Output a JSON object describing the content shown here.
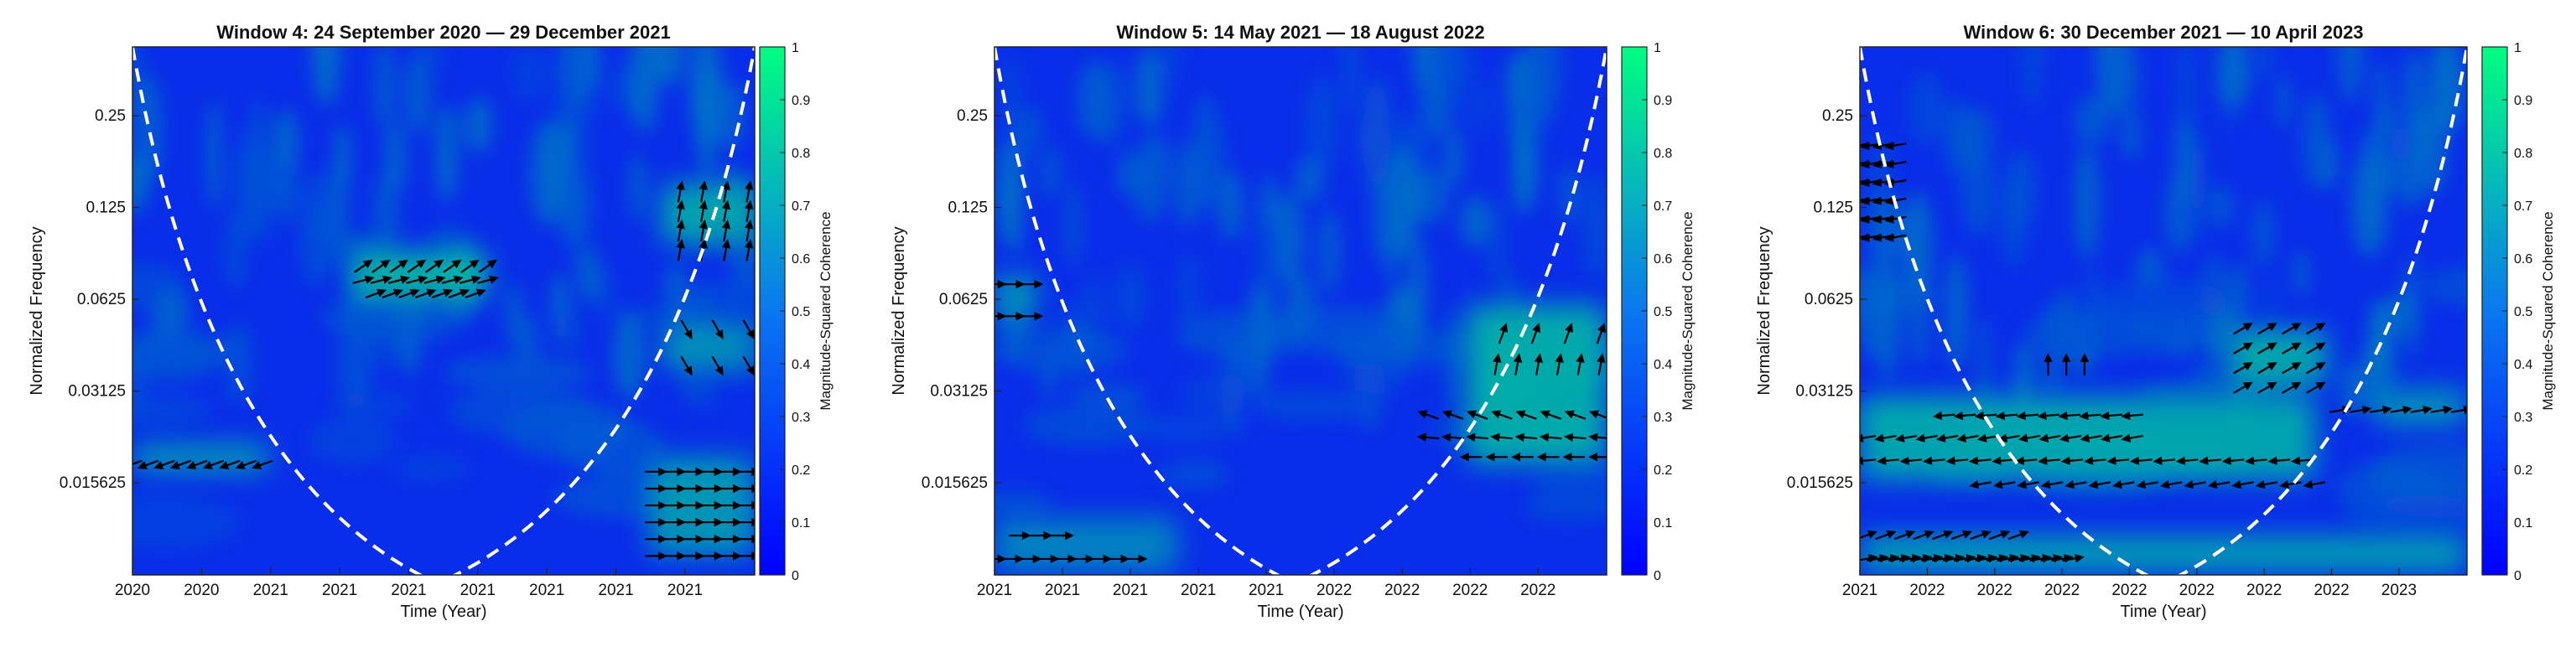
{
  "colors": {
    "low": "#0a17f5",
    "high": "#00ff80",
    "cone": "#ffffff",
    "arrow": "#000000"
  },
  "chart_data": [
    {
      "type": "heatmap",
      "title": "Window 4: 24 September 2020 — 29 December 2021",
      "xlabel": "Time (Year)",
      "ylabel": "Normalized Frequency",
      "yscale": "log2",
      "ylim": [
        0.0078,
        0.42
      ],
      "xlim": [
        0,
        1
      ],
      "x_ticks": [
        0,
        0.111,
        0.222,
        0.333,
        0.444,
        0.555,
        0.666,
        0.777,
        0.888
      ],
      "x_tick_labels": [
        "2020",
        "2020",
        "2021",
        "2021",
        "2021",
        "2021",
        "2021",
        "2021",
        "2021"
      ],
      "y_ticks": [
        0.015625,
        0.03125,
        0.0625,
        0.125,
        0.25
      ],
      "y_tick_labels": [
        "0.015625",
        "0.03125",
        "0.0625",
        "0.125",
        "0.25"
      ],
      "colorbar": {
        "label": "Magnitude-Squared Coherence",
        "range": [
          0,
          1
        ],
        "ticks": [
          "0",
          "0.1",
          "0.2",
          "0.3",
          "0.4",
          "0.5",
          "0.6",
          "0.7",
          "0.8",
          "0.9",
          "1"
        ]
      },
      "cone_vertex_x": 0.49,
      "coherence_regions": [
        {
          "x": [
            0.36,
            0.57
          ],
          "y": [
            0.062,
            0.09
          ],
          "value": 0.72
        },
        {
          "x": [
            0.0,
            0.22
          ],
          "y": [
            0.017,
            0.021
          ],
          "value": 0.6
        },
        {
          "x": [
            0.85,
            1.0
          ],
          "y": [
            0.095,
            0.15
          ],
          "value": 0.65
        },
        {
          "x": [
            0.85,
            1.0
          ],
          "y": [
            0.037,
            0.052
          ],
          "value": 0.55
        },
        {
          "x": [
            0.83,
            1.0
          ],
          "y": [
            0.009,
            0.019
          ],
          "value": 0.58
        }
      ],
      "arrow_groups": [
        {
          "x": [
            0.37,
            0.57
          ],
          "y": [
            0.08,
            0.09
          ],
          "n": 8,
          "angle": 35
        },
        {
          "x": [
            0.37,
            0.57
          ],
          "y": [
            0.072,
            0.076
          ],
          "n": 8,
          "angle": 15
        },
        {
          "x": [
            0.39,
            0.55
          ],
          "y": [
            0.065,
            0.066
          ],
          "n": 7,
          "angle": 20
        },
        {
          "x": [
            0.0,
            0.21
          ],
          "y": [
            0.018,
            0.018
          ],
          "n": 9,
          "angle": 200
        },
        {
          "x": [
            0.88,
            0.99
          ],
          "y": [
            0.09,
            0.14
          ],
          "n": 4,
          "angle": 80
        },
        {
          "x": [
            0.89,
            0.99
          ],
          "y": [
            0.038,
            0.05
          ],
          "n": 3,
          "angle": 300
        },
        {
          "x": [
            0.84,
            0.99
          ],
          "y": [
            0.009,
            0.017
          ],
          "n": 6,
          "angle": 0
        }
      ]
    },
    {
      "type": "heatmap",
      "title": "Window 5: 14 May 2021 — 18 August 2022",
      "xlabel": "Time (Year)",
      "ylabel": "Normalized Frequency",
      "yscale": "log2",
      "ylim": [
        0.0078,
        0.42
      ],
      "xlim": [
        0,
        1
      ],
      "x_ticks": [
        0,
        0.111,
        0.222,
        0.333,
        0.444,
        0.555,
        0.666,
        0.777,
        0.888
      ],
      "x_tick_labels": [
        "2021",
        "2021",
        "2021",
        "2021",
        "2021",
        "2022",
        "2022",
        "2022",
        "2022"
      ],
      "y_ticks": [
        0.015625,
        0.03125,
        0.0625,
        0.125,
        0.25
      ],
      "y_tick_labels": [
        "0.015625",
        "0.03125",
        "0.0625",
        "0.125",
        "0.25"
      ],
      "colorbar": {
        "label": "Magnitude-Squared Coherence",
        "range": [
          0,
          1
        ],
        "ticks": [
          "0",
          "0.1",
          "0.2",
          "0.3",
          "0.4",
          "0.5",
          "0.6",
          "0.7",
          "0.8",
          "0.9",
          "1"
        ]
      },
      "cone_vertex_x": 0.49,
      "coherence_regions": [
        {
          "x": [
            0.77,
            1.0
          ],
          "y": [
            0.018,
            0.06
          ],
          "value": 0.68
        },
        {
          "x": [
            0.0,
            0.07
          ],
          "y": [
            0.055,
            0.075
          ],
          "value": 0.6
        },
        {
          "x": [
            0.0,
            0.3
          ],
          "y": [
            0.008,
            0.012
          ],
          "value": 0.5
        }
      ],
      "arrow_groups": [
        {
          "x": [
            0.83,
            0.99
          ],
          "y": [
            0.048,
            0.056
          ],
          "n": 4,
          "angle": 70
        },
        {
          "x": [
            0.82,
            0.99
          ],
          "y": [
            0.038,
            0.042
          ],
          "n": 6,
          "angle": 80
        },
        {
          "x": [
            0.71,
            0.99
          ],
          "y": [
            0.026,
            0.026
          ],
          "n": 8,
          "angle": 160
        },
        {
          "x": [
            0.71,
            0.99
          ],
          "y": [
            0.022,
            0.022
          ],
          "n": 8,
          "angle": 175
        },
        {
          "x": [
            0.78,
            0.99
          ],
          "y": [
            0.019,
            0.019
          ],
          "n": 6,
          "angle": 180
        },
        {
          "x": [
            0.0,
            0.23
          ],
          "y": [
            0.0088,
            0.0088
          ],
          "n": 9,
          "angle": 0
        },
        {
          "x": [
            0.04,
            0.11
          ],
          "y": [
            0.0105,
            0.0105
          ],
          "n": 3,
          "angle": 0
        },
        {
          "x": [
            0.0,
            0.06
          ],
          "y": [
            0.055,
            0.07
          ],
          "n": 3,
          "angle": 0
        }
      ]
    },
    {
      "type": "heatmap",
      "title": "Window 6: 30 December 2021 — 10 April 2023",
      "xlabel": "Time (Year)",
      "ylabel": "Normalized Frequency",
      "yscale": "log2",
      "ylim": [
        0.0078,
        0.42
      ],
      "xlim": [
        0,
        1
      ],
      "x_ticks": [
        0,
        0.111,
        0.222,
        0.333,
        0.444,
        0.555,
        0.666,
        0.777,
        0.888
      ],
      "x_tick_labels": [
        "2021",
        "2022",
        "2022",
        "2022",
        "2022",
        "2022",
        "2022",
        "2022",
        "2023"
      ],
      "y_ticks": [
        0.015625,
        0.03125,
        0.0625,
        0.125,
        0.25
      ],
      "y_tick_labels": [
        "0.015625",
        "0.03125",
        "0.0625",
        "0.125",
        "0.25"
      ],
      "colorbar": {
        "label": "Magnitude-Squared Coherence",
        "range": [
          0,
          1
        ],
        "ticks": [
          "0",
          "0.1",
          "0.2",
          "0.3",
          "0.4",
          "0.5",
          "0.6",
          "0.7",
          "0.8",
          "0.9",
          "1"
        ]
      },
      "cone_vertex_x": 0.5,
      "coherence_regions": [
        {
          "x": [
            0.0,
            0.75
          ],
          "y": [
            0.016,
            0.03
          ],
          "value": 0.66
        },
        {
          "x": [
            0.0,
            1.0
          ],
          "y": [
            0.008,
            0.0105
          ],
          "value": 0.62
        },
        {
          "x": [
            0.61,
            0.77
          ],
          "y": [
            0.033,
            0.05
          ],
          "value": 0.65
        },
        {
          "x": [
            0.85,
            1.0
          ],
          "y": [
            0.024,
            0.032
          ],
          "value": 0.55
        }
      ],
      "arrow_groups": [
        {
          "x": [
            0.01,
            0.35
          ],
          "y": [
            0.0088,
            0.0088
          ],
          "n": 20,
          "angle": 10
        },
        {
          "x": [
            0.01,
            0.26
          ],
          "y": [
            0.0105,
            0.0105
          ],
          "n": 9,
          "angle": 20
        },
        {
          "x": [
            0.2,
            0.75
          ],
          "y": [
            0.0155,
            0.0155
          ],
          "n": 15,
          "angle": 190
        },
        {
          "x": [
            0.01,
            0.73
          ],
          "y": [
            0.0185,
            0.0185
          ],
          "n": 20,
          "angle": 185
        },
        {
          "x": [
            0.01,
            0.45
          ],
          "y": [
            0.022,
            0.022
          ],
          "n": 14,
          "angle": 190
        },
        {
          "x": [
            0.14,
            0.45
          ],
          "y": [
            0.026,
            0.026
          ],
          "n": 10,
          "angle": 185
        },
        {
          "x": [
            0.63,
            0.75
          ],
          "y": [
            0.032,
            0.05
          ],
          "n": 4,
          "angle": 30
        },
        {
          "x": [
            0.31,
            0.37
          ],
          "y": [
            0.038,
            0.045
          ],
          "n": 3,
          "angle": 90
        },
        {
          "x": [
            0.79,
            0.99
          ],
          "y": [
            0.027,
            0.027
          ],
          "n": 7,
          "angle": 10
        },
        {
          "x": [
            0.0,
            0.06
          ],
          "y": [
            0.1,
            0.2
          ],
          "n": 4,
          "angle": 190
        }
      ]
    }
  ]
}
